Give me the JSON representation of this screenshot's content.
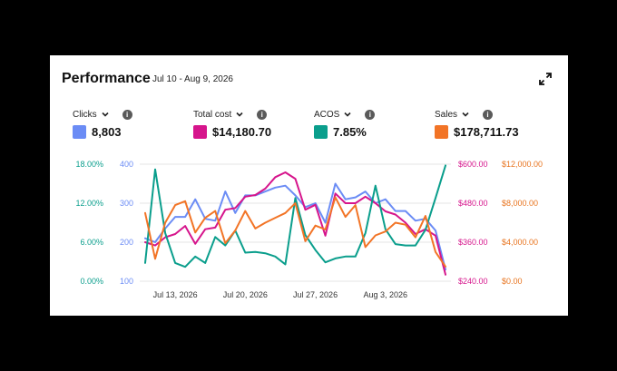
{
  "header": {
    "title": "Performance",
    "date_range": "Jul 10 - Aug 9, 2026",
    "expand_icon": "expand-icon"
  },
  "metrics": [
    {
      "label": "Clicks",
      "value": "8,803",
      "color": "#6b8cf5"
    },
    {
      "label": "Total cost",
      "value": "$14,180.70",
      "color": "#d6158c"
    },
    {
      "label": "ACOS",
      "value": "7.85%",
      "color": "#0a9e8c"
    },
    {
      "label": "Sales",
      "value": "$178,711.73",
      "color": "#f27426"
    }
  ],
  "chart_data": {
    "type": "line",
    "x_start": "2026-07-10",
    "x_end": "2026-08-09",
    "x_tick_labels": [
      "Jul 13, 2026",
      "Jul 20, 2026",
      "Jul 27, 2026",
      "Aug 3, 2026"
    ],
    "axes": {
      "acos": {
        "ticks": [
          "0.00%",
          "6.00%",
          "12.00%",
          "18.00%"
        ],
        "range": [
          0,
          18
        ],
        "color": "#0a9e8c"
      },
      "clicks": {
        "ticks": [
          "100",
          "200",
          "300",
          "400"
        ],
        "range": [
          100,
          400
        ],
        "color": "#6b8cf5"
      },
      "cost": {
        "ticks": [
          "$240.00",
          "$360.00",
          "$480.00",
          "$600.00"
        ],
        "range": [
          240,
          600
        ],
        "color": "#d6158c"
      },
      "sales": {
        "ticks": [
          "$0.00",
          "$4,000.00",
          "$8,000.00",
          "$12,000.00"
        ],
        "range": [
          0,
          12000
        ],
        "color": "#e8741f"
      }
    },
    "grid": true,
    "series": [
      {
        "name": "Clicks",
        "axis": "clicks",
        "color": "#6b8cf5",
        "values": [
          210,
          200,
          235,
          265,
          265,
          310,
          260,
          255,
          330,
          275,
          320,
          320,
          330,
          340,
          345,
          320,
          290,
          300,
          250,
          350,
          310,
          315,
          330,
          300,
          310,
          280,
          280,
          255,
          260,
          230,
          130
        ]
      },
      {
        "name": "Total cost",
        "axis": "cost",
        "color": "#d6158c",
        "values": [
          360,
          350,
          375,
          385,
          410,
          355,
          400,
          405,
          460,
          465,
          500,
          505,
          525,
          560,
          575,
          555,
          460,
          475,
          380,
          510,
          480,
          480,
          500,
          480,
          455,
          445,
          420,
          385,
          400,
          380,
          260
        ]
      },
      {
        "name": "ACOS",
        "axis": "acos",
        "color": "#0a9e8c",
        "values": [
          2.8,
          17.2,
          7.4,
          2.8,
          2.2,
          3.8,
          2.8,
          6.8,
          5.5,
          7.8,
          4.4,
          4.5,
          4.3,
          3.8,
          2.6,
          12.8,
          7.1,
          4.8,
          2.9,
          3.5,
          3.8,
          3.8,
          7.4,
          14.7,
          8.0,
          5.7,
          5.5,
          5.5,
          7.9,
          12.8,
          17.8
        ]
      },
      {
        "name": "Sales",
        "axis": "sales",
        "color": "#f27426",
        "values": [
          7000,
          2300,
          6000,
          7800,
          8200,
          5000,
          6500,
          7200,
          3900,
          5200,
          7200,
          5400,
          6000,
          6500,
          7000,
          8000,
          4100,
          5700,
          5300,
          8600,
          6600,
          7800,
          3500,
          4700,
          5100,
          6000,
          5800,
          4500,
          6700,
          3000,
          1500
        ]
      }
    ]
  }
}
